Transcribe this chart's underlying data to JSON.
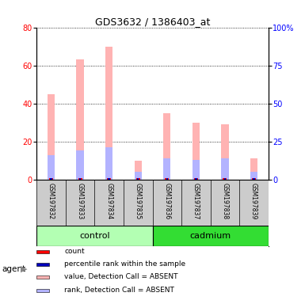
{
  "title": "GDS3632 / 1386403_at",
  "samples": [
    "GSM197832",
    "GSM197833",
    "GSM197834",
    "GSM197835",
    "GSM197836",
    "GSM197837",
    "GSM197838",
    "GSM197839"
  ],
  "pink_values": [
    45,
    63,
    70,
    10,
    35,
    30,
    29,
    11
  ],
  "blue_values": [
    16,
    19,
    21,
    5,
    14,
    13,
    14,
    5
  ],
  "ylim_left": [
    0,
    80
  ],
  "ylim_right": [
    0,
    100
  ],
  "yticks_left": [
    0,
    20,
    40,
    60,
    80
  ],
  "yticks_right": [
    0,
    25,
    50,
    75,
    100
  ],
  "pink_color": "#ffb3b3",
  "light_blue_color": "#b3b3ff",
  "red_color": "#ff0000",
  "dark_blue_color": "#0000bb",
  "bg_color": "#cccccc",
  "plot_bg": "#ffffff",
  "control_color": "#b3ffb3",
  "cadmium_color": "#33dd33",
  "legend_items": [
    {
      "color": "#ff0000",
      "label": "count"
    },
    {
      "color": "#0000bb",
      "label": "percentile rank within the sample"
    },
    {
      "color": "#ffb3b3",
      "label": "value, Detection Call = ABSENT"
    },
    {
      "color": "#b3b3ff",
      "label": "rank, Detection Call = ABSENT"
    }
  ]
}
